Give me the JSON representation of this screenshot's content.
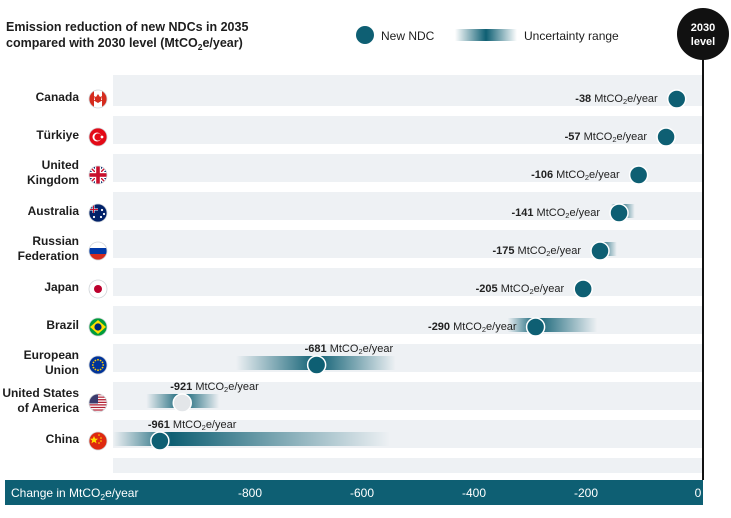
{
  "chart_data": {
    "type": "range-dot",
    "title_line1": "Emission reduction of new NDCs in 2035",
    "title_line2_prefix": "compared with 2030 level (MtCO",
    "title_line2_sub": "2",
    "title_line2_suffix": "e/year)",
    "legend": {
      "dot_label": "New NDC",
      "range_label": "Uncertainty range"
    },
    "reference_label_line1": "2030",
    "reference_label_line2": "level",
    "xlabel_prefix": "Change in  MtCO",
    "xlabel_sub": "2",
    "xlabel_suffix": "e/year",
    "xlim": [
      -1080,
      10
    ],
    "xticks": [
      -800,
      -600,
      -400,
      -200,
      0
    ],
    "unit_prefix": "MtCO",
    "unit_sub": "2",
    "unit_suffix": "e/year",
    "series": [
      {
        "country": [
          "Canada"
        ],
        "flag": "canada-flag",
        "value": -38,
        "value_label": "-38",
        "range": null,
        "highlight": false
      },
      {
        "country": [
          "Türkiye"
        ],
        "flag": "turkiye-flag",
        "value": -57,
        "value_label": "-57",
        "range": null,
        "highlight": false
      },
      {
        "country": [
          "United",
          "Kingdom"
        ],
        "flag": "uk-flag",
        "value": -106,
        "value_label": "-106",
        "range": null,
        "highlight": false
      },
      {
        "country": [
          "Australia"
        ],
        "flag": "australia-flag",
        "value": -141,
        "value_label": "-141",
        "range": [
          -155,
          -113
        ],
        "highlight": false
      },
      {
        "country": [
          "Russian",
          "Federation"
        ],
        "flag": "russia-flag",
        "value": -175,
        "value_label": "-175",
        "range": [
          -185,
          -145
        ],
        "highlight": false
      },
      {
        "country": [
          "Japan"
        ],
        "flag": "japan-flag",
        "value": -205,
        "value_label": "-205",
        "range": null,
        "highlight": false
      },
      {
        "country": [
          "Brazil"
        ],
        "flag": "brazil-flag",
        "value": -290,
        "value_label": "-290",
        "range": [
          -340,
          -180
        ],
        "highlight": false
      },
      {
        "country": [
          "European",
          "Union"
        ],
        "flag": "eu-flag",
        "value": -681,
        "value_label": "-681",
        "range": [
          -825,
          -540
        ],
        "highlight": false
      },
      {
        "country": [
          "United States",
          "of America"
        ],
        "flag": "usa-flag",
        "value": -921,
        "value_label": "-921",
        "range": [
          -985,
          -855
        ],
        "highlight": true
      },
      {
        "country": [
          "China"
        ],
        "flag": "china-flag",
        "value": -961,
        "value_label": "-961",
        "range": [
          -1070,
          -550
        ],
        "highlight": false
      }
    ],
    "colors": {
      "teal": "#0e5f73",
      "axis_bar": "#0e5f73",
      "row_band": "#eef1f4",
      "reference": "#111111",
      "highlight_dot": "#e3e6e9"
    }
  }
}
